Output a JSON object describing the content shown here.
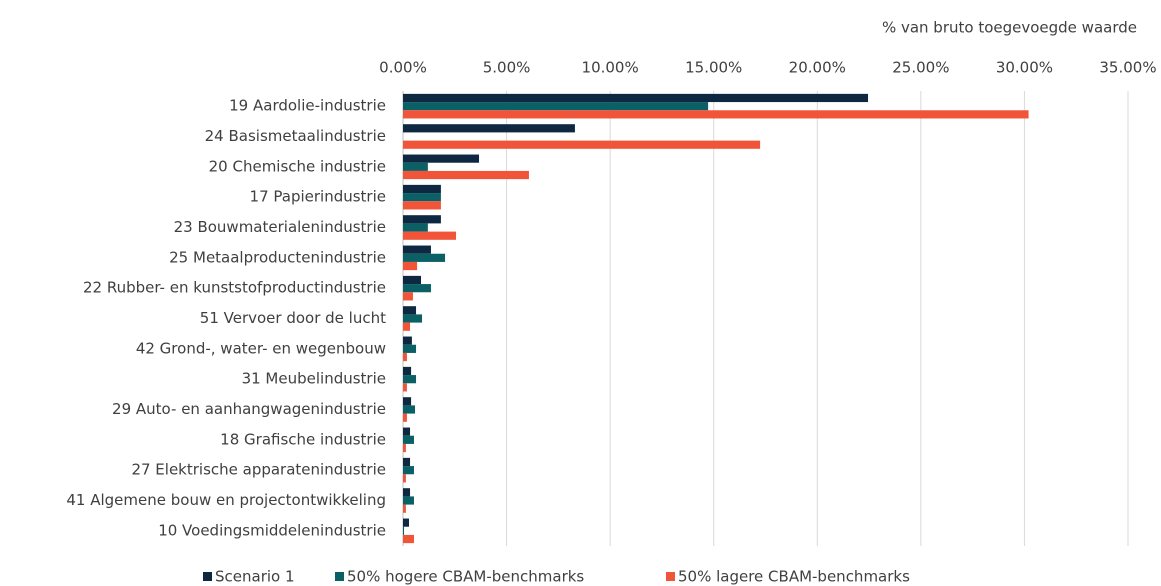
{
  "chart_data": {
    "type": "hbar",
    "axis_title": "% van bruto toegevoegde waarde",
    "categories": [
      "19 Aardolie-industrie",
      "24 Basismetaalindustrie",
      "20 Chemische industrie",
      "17 Papierindustrie",
      "23 Bouwmaterialenindustrie",
      "25 Metaalproductenindustrie",
      "22 Rubber- en kunststofproductindustrie",
      "51 Vervoer door de lucht",
      "42 Grond-, water-  en wegenbouw",
      "31 Meubelindustrie",
      "29 Auto- en aanhangwagenindustrie",
      "18 Grafische industrie",
      "27 Elektrische apparatenindustrie",
      "41 Algemene bouw en projectontwikkeling",
      "10 Voedingsmiddelenindustrie"
    ],
    "series": [
      {
        "name": "Scenario 1",
        "color": "#0e2841",
        "values": [
          22.45,
          8.3,
          3.67,
          1.83,
          1.83,
          1.35,
          0.87,
          0.63,
          0.43,
          0.39,
          0.39,
          0.34,
          0.34,
          0.34,
          0.29
        ]
      },
      {
        "name": "50% hogere CBAM-benchmarks",
        "color": "#0b6065",
        "values": [
          14.73,
          0,
          1.2,
          1.83,
          1.2,
          2.03,
          1.35,
          0.92,
          0.63,
          0.63,
          0.58,
          0.53,
          0.53,
          0.53,
          0.05
        ]
      },
      {
        "name": "50% lagere CBAM-benchmarks",
        "color": "#f0553a",
        "values": [
          30.2,
          17.24,
          6.08,
          1.83,
          2.56,
          0.68,
          0.48,
          0.34,
          0.19,
          0.19,
          0.19,
          0.14,
          0.14,
          0.14,
          0.53
        ]
      }
    ],
    "xlim": [
      0,
      35
    ],
    "xticks": [
      {
        "value": 0,
        "label": "0.00%"
      },
      {
        "value": 5,
        "label": "5.00%"
      },
      {
        "value": 10,
        "label": "10.00%"
      },
      {
        "value": 15,
        "label": "15.00%"
      },
      {
        "value": 20,
        "label": "20.00%"
      },
      {
        "value": 25,
        "label": "25.00%"
      },
      {
        "value": 30,
        "label": "30.00%"
      },
      {
        "value": 35,
        "label": "35.00%"
      }
    ],
    "grid": true
  }
}
